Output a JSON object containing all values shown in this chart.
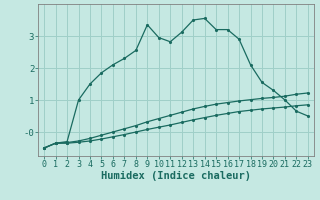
{
  "xlabel": "Humidex (Indice chaleur)",
  "background_color": "#c5e8e2",
  "grid_color": "#9fcfc8",
  "line_color": "#1a6b60",
  "x_values": [
    0,
    1,
    2,
    3,
    4,
    5,
    6,
    7,
    8,
    9,
    10,
    11,
    12,
    13,
    14,
    15,
    16,
    17,
    18,
    19,
    20,
    21,
    22,
    23
  ],
  "line1_y": [
    -0.5,
    -0.35,
    -0.35,
    -0.32,
    -0.28,
    -0.22,
    -0.15,
    -0.08,
    0.0,
    0.08,
    0.15,
    0.22,
    0.3,
    0.38,
    0.45,
    0.52,
    0.58,
    0.64,
    0.68,
    0.72,
    0.75,
    0.78,
    0.82,
    0.85
  ],
  "line2_y": [
    -0.5,
    -0.35,
    -0.33,
    -0.28,
    -0.2,
    -0.1,
    0.0,
    0.1,
    0.2,
    0.32,
    0.42,
    0.52,
    0.62,
    0.72,
    0.8,
    0.87,
    0.92,
    0.97,
    1.01,
    1.05,
    1.08,
    1.12,
    1.18,
    1.22
  ],
  "line3_y": [
    -0.5,
    -0.35,
    -0.3,
    1.0,
    1.5,
    1.85,
    2.1,
    2.3,
    2.55,
    3.35,
    2.95,
    2.82,
    3.12,
    3.5,
    3.55,
    3.2,
    3.2,
    2.9,
    2.1,
    1.55,
    1.3,
    1.0,
    0.65,
    0.5
  ],
  "ylim": [
    -0.75,
    4.0
  ],
  "xlim": [
    -0.5,
    23.5
  ],
  "yticks": [
    0,
    1,
    2,
    3
  ],
  "ytick_labels": [
    "-0",
    "1",
    "2",
    "3"
  ],
  "fontsize_tick": 6,
  "fontsize_xlabel": 7.5
}
